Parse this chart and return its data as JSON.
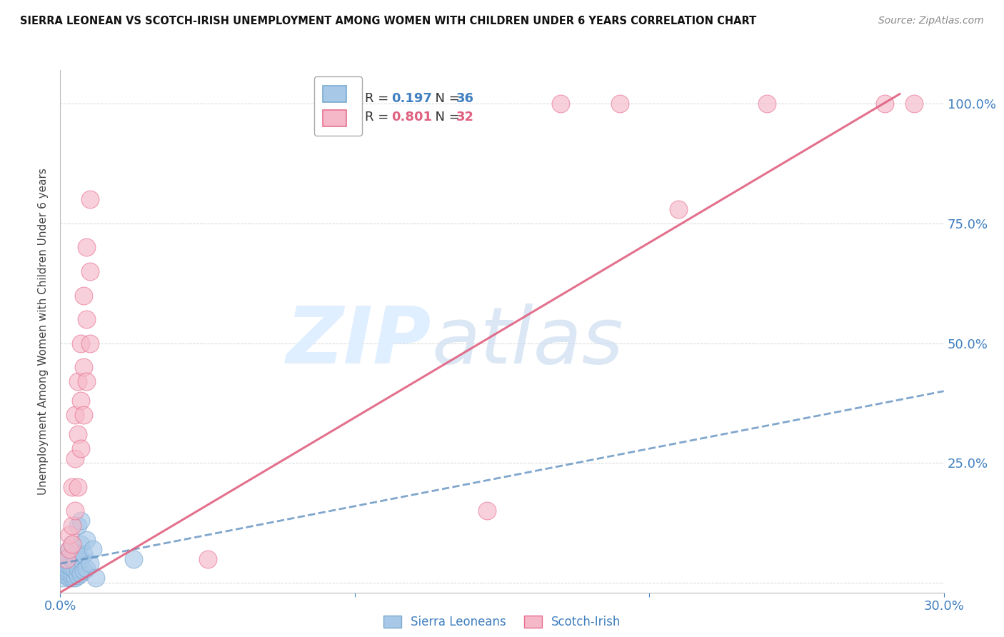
{
  "title": "SIERRA LEONEAN VS SCOTCH-IRISH UNEMPLOYMENT AMONG WOMEN WITH CHILDREN UNDER 6 YEARS CORRELATION CHART",
  "source": "Source: ZipAtlas.com",
  "ylabel": "Unemployment Among Women with Children Under 6 years",
  "xlim": [
    0.0,
    0.3
  ],
  "ylim": [
    -0.02,
    1.07
  ],
  "yticks": [
    0.0,
    0.25,
    0.5,
    0.75,
    1.0
  ],
  "ytick_labels": [
    "",
    "25.0%",
    "50.0%",
    "75.0%",
    "100.0%"
  ],
  "xtick_positions": [
    0.0,
    0.1,
    0.2,
    0.3
  ],
  "xtick_labels": [
    "0.0%",
    "",
    "",
    "30.0%"
  ],
  "blue_color": "#a8c8e8",
  "pink_color": "#f5b8c8",
  "blue_edge_color": "#7aaad0",
  "pink_edge_color": "#e87090",
  "blue_line_color": "#6090c0",
  "pink_line_color": "#e06080",
  "right_axis_color": "#4080c0",
  "watermark_color": "#ddeeff",
  "sierra_leonean_points": [
    [
      0.001,
      0.01
    ],
    [
      0.001,
      0.025
    ],
    [
      0.002,
      0.015
    ],
    [
      0.002,
      0.03
    ],
    [
      0.002,
      0.05
    ],
    [
      0.003,
      0.01
    ],
    [
      0.003,
      0.02
    ],
    [
      0.003,
      0.035
    ],
    [
      0.003,
      0.055
    ],
    [
      0.003,
      0.07
    ],
    [
      0.004,
      0.01
    ],
    [
      0.004,
      0.02
    ],
    [
      0.004,
      0.03
    ],
    [
      0.004,
      0.05
    ],
    [
      0.004,
      0.065
    ],
    [
      0.004,
      0.08
    ],
    [
      0.005,
      0.01
    ],
    [
      0.005,
      0.025
    ],
    [
      0.005,
      0.045
    ],
    [
      0.005,
      0.06
    ],
    [
      0.006,
      0.015
    ],
    [
      0.006,
      0.03
    ],
    [
      0.006,
      0.06
    ],
    [
      0.006,
      0.12
    ],
    [
      0.007,
      0.02
    ],
    [
      0.007,
      0.05
    ],
    [
      0.007,
      0.08
    ],
    [
      0.007,
      0.13
    ],
    [
      0.008,
      0.025
    ],
    [
      0.008,
      0.06
    ],
    [
      0.009,
      0.03
    ],
    [
      0.009,
      0.09
    ],
    [
      0.01,
      0.04
    ],
    [
      0.011,
      0.07
    ],
    [
      0.012,
      0.01
    ],
    [
      0.025,
      0.05
    ]
  ],
  "scotch_irish_points": [
    [
      0.002,
      0.05
    ],
    [
      0.003,
      0.07
    ],
    [
      0.003,
      0.1
    ],
    [
      0.004,
      0.08
    ],
    [
      0.004,
      0.12
    ],
    [
      0.004,
      0.2
    ],
    [
      0.005,
      0.15
    ],
    [
      0.005,
      0.26
    ],
    [
      0.005,
      0.35
    ],
    [
      0.006,
      0.2
    ],
    [
      0.006,
      0.31
    ],
    [
      0.006,
      0.42
    ],
    [
      0.007,
      0.28
    ],
    [
      0.007,
      0.38
    ],
    [
      0.007,
      0.5
    ],
    [
      0.008,
      0.35
    ],
    [
      0.008,
      0.45
    ],
    [
      0.008,
      0.6
    ],
    [
      0.009,
      0.42
    ],
    [
      0.009,
      0.55
    ],
    [
      0.009,
      0.7
    ],
    [
      0.01,
      0.5
    ],
    [
      0.01,
      0.65
    ],
    [
      0.01,
      0.8
    ],
    [
      0.145,
      0.15
    ],
    [
      0.17,
      1.0
    ],
    [
      0.19,
      1.0
    ],
    [
      0.21,
      0.78
    ],
    [
      0.24,
      1.0
    ],
    [
      0.28,
      1.0
    ],
    [
      0.29,
      1.0
    ],
    [
      0.05,
      0.05
    ]
  ],
  "blue_trend_x": [
    0.0,
    0.3
  ],
  "blue_trend_y": [
    0.04,
    0.4
  ],
  "pink_trend_x": [
    0.0,
    0.285
  ],
  "pink_trend_y": [
    -0.02,
    1.02
  ]
}
